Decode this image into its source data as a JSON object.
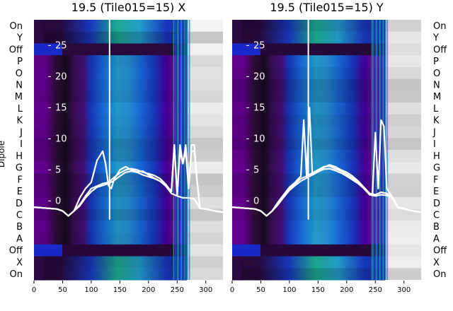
{
  "chart_data": {
    "type": "heatmap",
    "ylabel": "Dipole",
    "row_labels_top_to_bottom": [
      "On",
      "Y",
      "Off",
      "P",
      "O",
      "N",
      "M",
      "L",
      "K",
      "J",
      "I",
      "H",
      "G",
      "F",
      "E",
      "D",
      "C",
      "B",
      "A",
      "Off",
      "X",
      "On"
    ],
    "xlim": [
      0,
      330
    ],
    "x_ticks": [
      "0",
      "50",
      "100",
      "150",
      "200",
      "250",
      "300"
    ],
    "overlay_ylim": [
      -3,
      28
    ],
    "overlay_y_ticks": [
      "0",
      "5",
      "10",
      "15",
      "20",
      "25"
    ],
    "colormap": [
      "#1e0c2a",
      "#6e00a0",
      "#1a3ac8",
      "#1a74e8",
      "#26a6d8",
      "#1fb396"
    ],
    "panels": [
      {
        "title": "19.5 (Tile015=15) X",
        "overlay_curves": [
          {
            "x": [
              0,
              40,
              50,
              60,
              70,
              80,
              90,
              100,
              110,
              120,
              125,
              130,
              135,
              140,
              150,
              160,
              170,
              180,
              190,
              200,
              210,
              220,
              230,
              240,
              245,
              250,
              255,
              260,
              265,
              270,
              275,
              280,
              285,
              290,
              300,
              315,
              330
            ],
            "y": [
              -1,
              -1.3,
              -1.6,
              -2.4,
              -1.6,
              0.5,
              2,
              3,
              6.5,
              8,
              6,
              2.5,
              2,
              3.5,
              5,
              5.5,
              5,
              4.7,
              4.8,
              4.2,
              3.7,
              3.2,
              2.5,
              1.5,
              9,
              1,
              9,
              6,
              9,
              2,
              9,
              9,
              3,
              -1.2,
              -1.3,
              -1.6,
              -1.8
            ]
          },
          {
            "x": [
              0,
              40,
              50,
              60,
              70,
              80,
              90,
              100,
              110,
              120,
              130,
              140,
              150,
              160,
              170,
              180,
              190,
              200,
              210,
              220,
              230,
              240,
              245,
              250,
              255,
              260,
              265,
              270,
              275,
              280,
              285,
              290,
              300,
              315,
              330
            ],
            "y": [
              -1,
              -1.3,
              -1.6,
              -2.4,
              -1.6,
              -0.6,
              0.8,
              2,
              2.4,
              2.8,
              3,
              3.8,
              4.5,
              5,
              5.2,
              5,
              4.6,
              4.4,
              4.1,
              3.6,
              2.7,
              1.5,
              9,
              1,
              8,
              6,
              8,
              2,
              8,
              8,
              3,
              -1.2,
              -1.3,
              -1.6,
              -1.8
            ]
          },
          {
            "x": [
              0,
              40,
              50,
              60,
              70,
              80,
              90,
              100,
              110,
              120,
              130,
              140,
              150,
              160,
              170,
              180,
              190,
              200,
              210,
              220,
              230,
              240,
              250,
              260,
              270,
              280,
              290,
              300,
              315,
              330
            ],
            "y": [
              -1,
              -1.3,
              -1.6,
              -2.4,
              -1.6,
              -0.8,
              0.5,
              1.5,
              2.2,
              2.5,
              2.8,
              3.3,
              4,
              4.6,
              4.8,
              4.6,
              4.2,
              3.9,
              3.6,
              3.2,
              2.4,
              1.2,
              0.8,
              0.5,
              0.5,
              0.3,
              -1.2,
              -1.3,
              -1.6,
              -1.8
            ]
          }
        ],
        "spike": {
          "x": 132,
          "y_from": -3,
          "y_to": 28
        }
      },
      {
        "title": "19.5 (Tile015=15) Y",
        "overlay_curves": [
          {
            "x": [
              0,
              40,
              50,
              60,
              70,
              80,
              90,
              100,
              110,
              120,
              125,
              130,
              135,
              140,
              150,
              160,
              170,
              180,
              190,
              200,
              210,
              220,
              230,
              240,
              245,
              250,
              255,
              260,
              265,
              270,
              280,
              290,
              300,
              315,
              330
            ],
            "y": [
              -1,
              -1.3,
              -1.6,
              -2.4,
              -1.6,
              -0.2,
              1,
              2.2,
              3,
              4,
              13,
              4,
              15,
              4.2,
              4.8,
              5.4,
              5.8,
              5.5,
              5,
              4.6,
              4,
              3.2,
              2.2,
              1.2,
              1,
              11,
              2,
              13,
              12,
              2,
              0.6,
              -1,
              -1.2,
              -1.6,
              -1.8
            ]
          },
          {
            "x": [
              0,
              40,
              50,
              60,
              70,
              80,
              90,
              100,
              110,
              120,
              130,
              140,
              150,
              160,
              170,
              180,
              190,
              200,
              210,
              220,
              230,
              240,
              250,
              260,
              270,
              280,
              290,
              300,
              315,
              330
            ],
            "y": [
              -1,
              -1.3,
              -1.6,
              -2.4,
              -1.6,
              -0.4,
              0.8,
              2,
              2.8,
              3.6,
              4,
              4.5,
              5,
              5.5,
              5.6,
              5.2,
              4.8,
              4.3,
              3.7,
              3,
              2.2,
              1.2,
              1,
              1.4,
              1.2,
              0.6,
              -1,
              -1.2,
              -1.6,
              -1.8
            ]
          },
          {
            "x": [
              0,
              40,
              50,
              60,
              70,
              80,
              90,
              100,
              110,
              120,
              130,
              140,
              150,
              160,
              170,
              180,
              190,
              200,
              210,
              220,
              230,
              240,
              250,
              260,
              270,
              280,
              290,
              300,
              315,
              330
            ],
            "y": [
              -1,
              -1.3,
              -1.6,
              -2.4,
              -1.6,
              -0.6,
              0.6,
              1.7,
              2.5,
              3.2,
              3.7,
              4.2,
              4.7,
              5.1,
              5.2,
              4.9,
              4.5,
              4,
              3.4,
              2.8,
              2,
              1,
              0.8,
              1,
              0.9,
              0.4,
              -1.1,
              -1.3,
              -1.6,
              -1.8
            ]
          }
        ],
        "spike": {
          "x": 133,
          "y_from": -3,
          "y_to": 28
        }
      }
    ]
  }
}
